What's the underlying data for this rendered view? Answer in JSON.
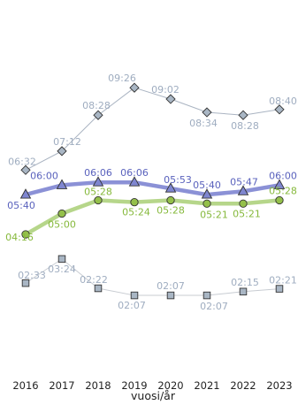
{
  "chart_data": {
    "type": "line",
    "xlabel": "vuosi/år",
    "ylabel": "",
    "categories": [
      "2016",
      "2017",
      "2018",
      "2019",
      "2020",
      "2021",
      "2022",
      "2023"
    ],
    "grid": false,
    "legend": "none",
    "series": [
      {
        "color": "#aab4c2",
        "marker": "diamond",
        "marker_fill": "#a9b6c4",
        "values": [
          "06:32",
          "07:12",
          "08:28",
          "09:26",
          "09:02",
          "08:34",
          "08:28",
          "08:40"
        ]
      },
      {
        "color": "#8b91d6",
        "marker": "triangle",
        "marker_fill": "#7f86d0",
        "values": [
          "05:40",
          "06:00",
          "06:06",
          "06:06",
          "05:53",
          "05:40",
          "05:47",
          "06:00"
        ]
      },
      {
        "color": "#b6d68a",
        "marker": "circle",
        "marker_fill": "#94c04a",
        "values": [
          "04:16",
          "05:00",
          "05:28",
          "05:24",
          "05:28",
          "05:21",
          "05:21",
          "05:28"
        ]
      },
      {
        "color": "#c8ccd2",
        "marker": "square",
        "marker_fill": "#a9b6c4",
        "values": [
          "02:33",
          "03:24",
          "02:22",
          "02:07",
          "02:07",
          "02:07",
          "02:15",
          "02:21"
        ]
      }
    ]
  }
}
